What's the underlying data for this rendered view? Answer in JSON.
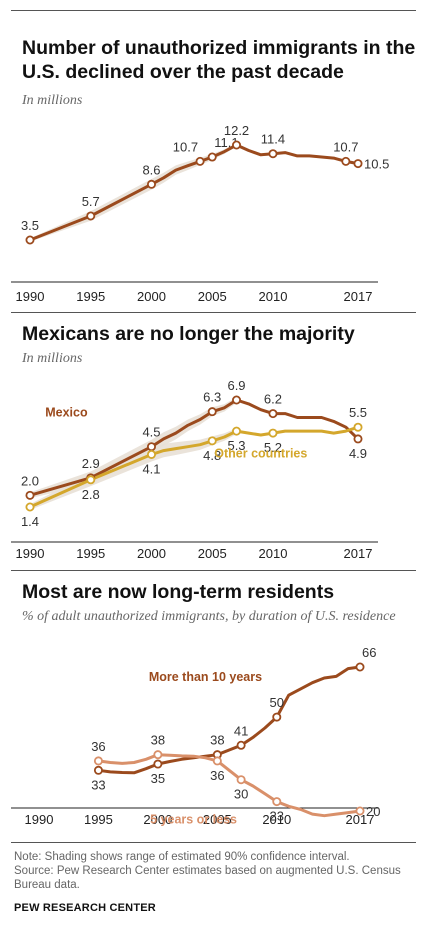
{
  "colors": {
    "mexico": "#9b4a1d",
    "other": "#d4a72c",
    "long": "#9b4a1d",
    "short": "#d9906a",
    "band": "#e8e0d6",
    "axis": "#222222",
    "text": "#333333"
  },
  "footer": {
    "note": "Note: Shading shows range of estimated 90% confidence interval.",
    "source": "Source: Pew Research Center estimates based on augmented U.S. Census Bureau data.",
    "brand": "PEW RESEARCH CENTER"
  },
  "chart_data": [
    {
      "type": "line",
      "title": "Number of unauthorized immigrants in the U.S. declined over the past decade",
      "subtitle": "In millions",
      "x_ticks": [
        "1990",
        "1995",
        "2000",
        "2005",
        "2010",
        "2017"
      ],
      "xlim": [
        1990,
        2017
      ],
      "ylim": [
        3.5,
        12.2
      ],
      "grid": false,
      "legend": "none",
      "series": [
        {
          "x": [
            1990,
            1995,
            2000,
            2001,
            2002,
            2003,
            2004,
            2005,
            2006,
            2007,
            2008,
            2009,
            2010,
            2011,
            2012,
            2013,
            2014,
            2015,
            2016,
            2017
          ],
          "y": [
            3.5,
            5.7,
            8.6,
            9.2,
            9.9,
            10.3,
            10.7,
            11.1,
            11.6,
            12.2,
            11.7,
            11.3,
            11.4,
            11.5,
            11.2,
            11.2,
            11.1,
            11.0,
            10.7,
            10.5
          ]
        }
      ],
      "labels": [
        {
          "x": 1990,
          "y": 3.5,
          "text": "3.5",
          "pos": "above"
        },
        {
          "x": 1995,
          "y": 5.7,
          "text": "5.7",
          "pos": "above"
        },
        {
          "x": 2000,
          "y": 8.6,
          "text": "8.6",
          "pos": "above"
        },
        {
          "x": 2004,
          "y": 10.7,
          "text": "10.7",
          "pos": "above-left"
        },
        {
          "x": 2005,
          "y": 11.1,
          "text": "11.1",
          "pos": "above-right"
        },
        {
          "x": 2007,
          "y": 12.2,
          "text": "12.2",
          "pos": "above"
        },
        {
          "x": 2010,
          "y": 11.4,
          "text": "11.4",
          "pos": "above"
        },
        {
          "x": 2016,
          "y": 10.7,
          "text": "10.7",
          "pos": "above"
        },
        {
          "x": 2017,
          "y": 10.5,
          "text": "10.5",
          "pos": "right"
        }
      ]
    },
    {
      "type": "line",
      "title": "Mexicans are no longer the majority",
      "subtitle": "In millions",
      "x_ticks": [
        "1990",
        "1995",
        "2000",
        "2005",
        "2010",
        "2017"
      ],
      "xlim": [
        1990,
        2017
      ],
      "ylim": [
        1.4,
        6.9
      ],
      "grid": false,
      "legend": "inline labels",
      "series": [
        {
          "name": "Mexico",
          "x": [
            1990,
            1995,
            2000,
            2001,
            2002,
            2003,
            2004,
            2005,
            2006,
            2007,
            2008,
            2009,
            2010,
            2011,
            2012,
            2013,
            2014,
            2015,
            2016,
            2017
          ],
          "y": [
            2.0,
            2.9,
            4.5,
            4.9,
            5.2,
            5.6,
            5.9,
            6.3,
            6.5,
            6.9,
            6.7,
            6.4,
            6.2,
            6.2,
            6.0,
            6.0,
            6.0,
            5.8,
            5.5,
            4.9
          ]
        },
        {
          "name": "Other countries",
          "x": [
            1990,
            1995,
            2000,
            2001,
            2002,
            2003,
            2004,
            2005,
            2006,
            2007,
            2008,
            2009,
            2010,
            2011,
            2012,
            2013,
            2014,
            2015,
            2016,
            2017
          ],
          "y": [
            1.4,
            2.8,
            4.1,
            4.3,
            4.4,
            4.5,
            4.6,
            4.8,
            5.0,
            5.3,
            5.2,
            5.1,
            5.2,
            5.3,
            5.3,
            5.3,
            5.3,
            5.2,
            5.3,
            5.5
          ]
        }
      ],
      "labels": [
        {
          "series": 0,
          "x": 1990,
          "y": 2.0,
          "text": "2.0",
          "pos": "above"
        },
        {
          "series": 1,
          "x": 1990,
          "y": 1.4,
          "text": "1.4",
          "pos": "below"
        },
        {
          "series": 0,
          "x": 1995,
          "y": 2.9,
          "text": "2.9",
          "pos": "above"
        },
        {
          "series": 1,
          "x": 1995,
          "y": 2.8,
          "text": "2.8",
          "pos": "below"
        },
        {
          "series": 0,
          "x": 2000,
          "y": 4.5,
          "text": "4.5",
          "pos": "above"
        },
        {
          "series": 1,
          "x": 2000,
          "y": 4.1,
          "text": "4.1",
          "pos": "below"
        },
        {
          "series": 0,
          "x": 2005,
          "y": 6.3,
          "text": "6.3",
          "pos": "above"
        },
        {
          "series": 1,
          "x": 2005,
          "y": 4.8,
          "text": "4.8",
          "pos": "below"
        },
        {
          "series": 0,
          "x": 2007,
          "y": 6.9,
          "text": "6.9",
          "pos": "above"
        },
        {
          "series": 1,
          "x": 2007,
          "y": 5.3,
          "text": "5.3",
          "pos": "below"
        },
        {
          "series": 0,
          "x": 2010,
          "y": 6.2,
          "text": "6.2",
          "pos": "above"
        },
        {
          "series": 1,
          "x": 2010,
          "y": 5.2,
          "text": "5.2",
          "pos": "below"
        },
        {
          "series": 1,
          "x": 2017,
          "y": 5.5,
          "text": "5.5",
          "pos": "above"
        },
        {
          "series": 0,
          "x": 2017,
          "y": 4.9,
          "text": "4.9",
          "pos": "below"
        }
      ],
      "series_labels": [
        {
          "series": 0,
          "text": "Mexico",
          "x": 1993,
          "y": 6.05
        },
        {
          "series": 1,
          "text": "Other countries",
          "x": 2009,
          "y": 3.95
        }
      ]
    },
    {
      "type": "line",
      "title": "Most are now long-term residents",
      "subtitle": "% of adult unauthorized immigrants, by duration of U.S. residence",
      "x_ticks": [
        "1990",
        "1995",
        "2000",
        "2005",
        "2010",
        "2017"
      ],
      "xlim": [
        1990,
        2017
      ],
      "ylim": [
        20,
        66
      ],
      "grid": false,
      "legend": "inline labels",
      "series": [
        {
          "name": "More than 10 years",
          "x": [
            1995,
            1996,
            1997,
            1998,
            1999,
            2000,
            2001,
            2002,
            2003,
            2004,
            2005,
            2006,
            2007,
            2008,
            2009,
            2010,
            2011,
            2012,
            2013,
            2014,
            2015,
            2016,
            2017
          ],
          "y": [
            33,
            32.5,
            32.3,
            32.2,
            33.5,
            35,
            35.8,
            36.5,
            37,
            37.5,
            38,
            39.5,
            41,
            43.5,
            46.5,
            50,
            57,
            59,
            61,
            62.5,
            63,
            65.5,
            66
          ]
        },
        {
          "name": "5 years or less",
          "x": [
            1995,
            1996,
            1997,
            1998,
            1999,
            2000,
            2001,
            2002,
            2003,
            2004,
            2005,
            2006,
            2007,
            2008,
            2009,
            2010,
            2011,
            2012,
            2013,
            2014,
            2015,
            2016,
            2017
          ],
          "y": [
            36,
            35.5,
            35.2,
            35.5,
            36.5,
            38,
            37.8,
            37.6,
            37.5,
            37,
            36,
            33,
            30,
            28,
            25.5,
            23,
            21.5,
            20.5,
            19,
            18.5,
            19,
            19.5,
            20
          ]
        }
      ],
      "labels": [
        {
          "series": 1,
          "x": 1995,
          "y": 36,
          "text": "36",
          "pos": "above"
        },
        {
          "series": 0,
          "x": 1995,
          "y": 33,
          "text": "33",
          "pos": "below"
        },
        {
          "series": 1,
          "x": 2000,
          "y": 38,
          "text": "38",
          "pos": "above"
        },
        {
          "series": 0,
          "x": 2000,
          "y": 35,
          "text": "35",
          "pos": "below"
        },
        {
          "series": 0,
          "x": 2005,
          "y": 38,
          "text": "38",
          "pos": "above"
        },
        {
          "series": 1,
          "x": 2005,
          "y": 36,
          "text": "36",
          "pos": "below"
        },
        {
          "series": 0,
          "x": 2007,
          "y": 41,
          "text": "41",
          "pos": "above"
        },
        {
          "series": 1,
          "x": 2007,
          "y": 30,
          "text": "30",
          "pos": "below"
        },
        {
          "series": 0,
          "x": 2010,
          "y": 50,
          "text": "50",
          "pos": "above"
        },
        {
          "series": 1,
          "x": 2010,
          "y": 23,
          "text": "23",
          "pos": "below"
        },
        {
          "series": 0,
          "x": 2017,
          "y": 66,
          "text": "66",
          "pos": "above-right"
        },
        {
          "series": 1,
          "x": 2017,
          "y": 20,
          "text": "20",
          "pos": "right"
        }
      ],
      "series_labels": [
        {
          "series": 0,
          "text": "More than 10 years",
          "x": 2004,
          "y": 61.5
        },
        {
          "series": 1,
          "text": "5 years or less",
          "x": 2003,
          "y": 16
        }
      ]
    }
  ]
}
